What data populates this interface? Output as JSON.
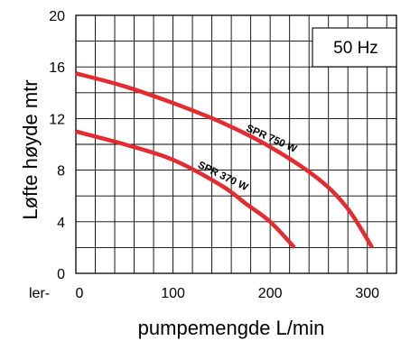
{
  "chart_data": {
    "type": "line",
    "xlabel": "pumpemengde L/min",
    "ylabel": "Løfte høyde mtr",
    "xlim": [
      0,
      330
    ],
    "ylim": [
      0,
      20
    ],
    "x_ticks": [
      0,
      100,
      200,
      300
    ],
    "x_tick_labels": [
      "0",
      "100",
      "200",
      "300"
    ],
    "x_left_fragment": "ler-",
    "y_ticks": [
      0,
      4,
      8,
      12,
      16,
      20
    ],
    "grid": true,
    "annotation": "50 Hz",
    "series_color": "#e52a30",
    "series": [
      {
        "name": "SPR 750 W",
        "x": [
          0,
          50,
          100,
          150,
          200,
          250,
          280,
          305
        ],
        "y": [
          15.5,
          14.5,
          13.2,
          11.7,
          9.8,
          7.3,
          5.0,
          2.0
        ]
      },
      {
        "name": "SPR 370 W",
        "x": [
          0,
          50,
          100,
          150,
          175,
          200,
          225
        ],
        "y": [
          11.0,
          10.0,
          8.8,
          6.8,
          5.4,
          4.0,
          2.0
        ]
      }
    ]
  }
}
